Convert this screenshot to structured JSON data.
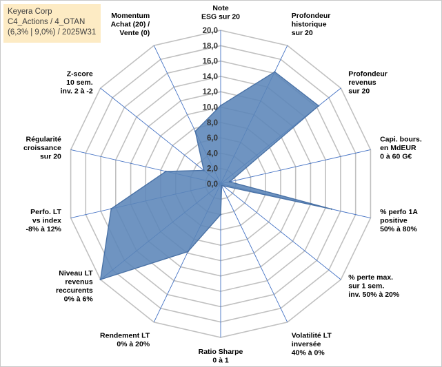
{
  "info": {
    "company": "Keyera Corp",
    "portfolio": "C4_Actions / 4_OTAN",
    "params": "(6,3% | 9,0%) / 2025W31"
  },
  "colors": {
    "fill": "#5b85b8",
    "stroke": "#4a72a6",
    "axis": "#4472c4",
    "grid": "#c0c0c0",
    "info_bg": "#fdebc4"
  },
  "chart_data": {
    "type": "radar",
    "title": "",
    "rmin": 0,
    "rmax": 20,
    "tick_step": 2,
    "tick_labels": [
      "0,0",
      "2,0",
      "4,0",
      "6,0",
      "8,0",
      "10,0",
      "12,0",
      "14,0",
      "16,0",
      "18,0",
      "20,0"
    ],
    "grid": true,
    "axes": [
      {
        "label": [
          "Note",
          "ESG sur 20"
        ],
        "value": 10.2
      },
      {
        "label": [
          "Profondeur",
          "historique",
          "sur 20"
        ],
        "value": 16.2
      },
      {
        "label": [
          "Profondeur",
          "revenus",
          "sur 20"
        ],
        "value": 16.3
      },
      {
        "label": [
          "Capi. bours.",
          "en MdEUR",
          "0 à 60 G€"
        ],
        "value": 1.2
      },
      {
        "label": [
          "% perfo 1A",
          "positive",
          "50% à 80%"
        ],
        "value": 14.8
      },
      {
        "label": [
          "% perte max.",
          "sur 1 sem.",
          "inv. 50% à 20%"
        ],
        "value": 0.4
      },
      {
        "label": [
          "Volatilité LT",
          "inversée",
          "40% à 0%"
        ],
        "value": 0.3
      },
      {
        "label": [
          "Ratio Sharpe",
          "0 à 1"
        ],
        "value": 4.0
      },
      {
        "label": [
          "Rendement LT",
          "0% à 20%"
        ],
        "value": 9.8
      },
      {
        "label": [
          "Niveau LT",
          "revenus",
          "reccurents",
          "0% à 6%"
        ],
        "value": 20.0
      },
      {
        "label": [
          "Perfo. LT",
          "vs index",
          "-8% à 12%"
        ],
        "value": 14.6
      },
      {
        "label": [
          "Régularité",
          "croissance",
          "sur 20"
        ],
        "value": 7.3
      },
      {
        "label": [
          "Z-score",
          "10 sem.",
          "inv. 2 à -2"
        ],
        "value": 2.8
      },
      {
        "label": [
          "Momentum",
          "Achat (20) /",
          "Vente (0)"
        ],
        "value": 7.6
      }
    ]
  }
}
